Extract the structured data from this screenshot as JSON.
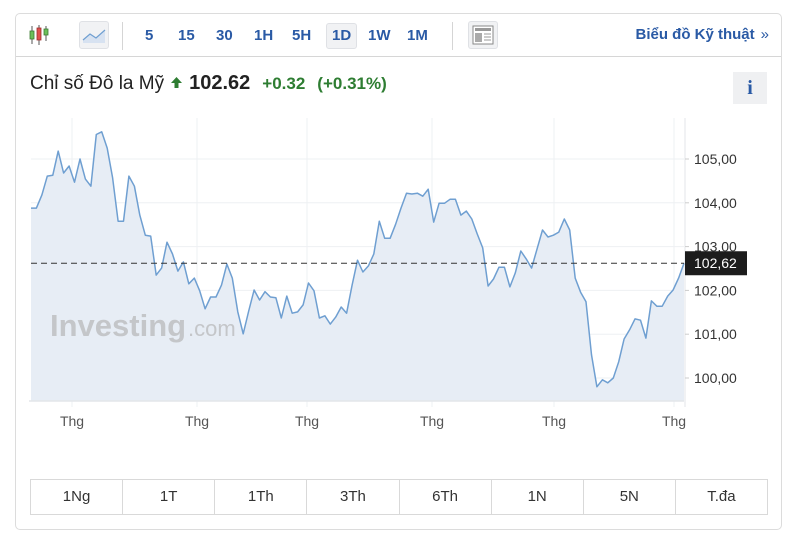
{
  "toolbar": {
    "chart_type_icons": [
      {
        "name": "candlestick-icon",
        "active": false
      },
      {
        "name": "area-chart-icon",
        "active": true
      }
    ],
    "intervals": [
      "5",
      "15",
      "30",
      "1H",
      "5H",
      "1D",
      "1W",
      "1M"
    ],
    "active_interval": "1D",
    "news_icon": "news-layout-icon",
    "technical_link": "Biểu đồ Kỹ thuật",
    "technical_chevron": "»"
  },
  "header": {
    "name": "Chỉ số Đô la Mỹ",
    "direction_icon": "arrow-up-icon",
    "price": "102.62",
    "change": "+0.32",
    "change_pct": "(+0.31%)",
    "info_label": "i"
  },
  "watermark": {
    "brand": "Investing",
    "suffix": ".com"
  },
  "colors": {
    "accent": "#2a5aa5",
    "positive": "#2e7d32",
    "line": "#6f9fd1",
    "area": "#e7edf5",
    "price_tag_bg": "#1c1c1c"
  },
  "range_buttons": [
    "1Ng",
    "1T",
    "1Th",
    "3Th",
    "6Th",
    "1N",
    "5N",
    "T.đa"
  ],
  "chart_data": {
    "type": "area",
    "title": "Chỉ số Đô la Mỹ",
    "xlabel": "",
    "ylabel": "",
    "ylim": [
      99.5,
      106.0
    ],
    "yticks": [
      "100,00",
      "101,00",
      "102,00",
      "103,00",
      "104,00",
      "105,00"
    ],
    "xticks": [
      "Thg",
      "Thg",
      "Thg",
      "Thg",
      "Thg",
      "Thg"
    ],
    "grid": true,
    "legend": "none",
    "current_value_label": "102,62",
    "current_value": 102.62,
    "series": [
      {
        "name": "Chỉ số Đô la Mỹ",
        "values": [
          103.88,
          103.88,
          104.18,
          104.61,
          104.63,
          105.18,
          104.68,
          104.84,
          104.47,
          105.0,
          104.54,
          104.38,
          105.56,
          105.62,
          105.25,
          104.57,
          103.58,
          103.58,
          104.61,
          104.38,
          103.72,
          103.26,
          103.24,
          102.35,
          102.51,
          103.1,
          102.83,
          102.44,
          102.65,
          102.15,
          102.28,
          101.99,
          101.58,
          101.85,
          101.85,
          102.12,
          102.6,
          102.28,
          101.51,
          101.01,
          101.53,
          102.01,
          101.78,
          101.97,
          101.85,
          101.83,
          101.37,
          101.87,
          101.48,
          101.51,
          101.67,
          102.17,
          101.99,
          101.37,
          101.42,
          101.23,
          101.39,
          101.62,
          101.48,
          102.12,
          102.69,
          102.42,
          102.56,
          102.83,
          103.58,
          103.19,
          103.19,
          103.51,
          103.88,
          104.22,
          104.2,
          104.22,
          104.15,
          104.31,
          103.56,
          103.99,
          103.99,
          104.08,
          104.08,
          103.72,
          103.81,
          103.63,
          103.29,
          102.97,
          102.1,
          102.26,
          102.53,
          102.53,
          102.08,
          102.4,
          102.9,
          102.72,
          102.51,
          102.95,
          103.38,
          103.22,
          103.26,
          103.33,
          103.63,
          103.38,
          102.28,
          101.96,
          101.74,
          100.53,
          99.8,
          99.96,
          99.89,
          100.0,
          100.37,
          100.89,
          101.1,
          101.35,
          101.32,
          100.91,
          101.76,
          101.64,
          101.64,
          101.87,
          102.01,
          102.28,
          102.62
        ]
      }
    ]
  }
}
